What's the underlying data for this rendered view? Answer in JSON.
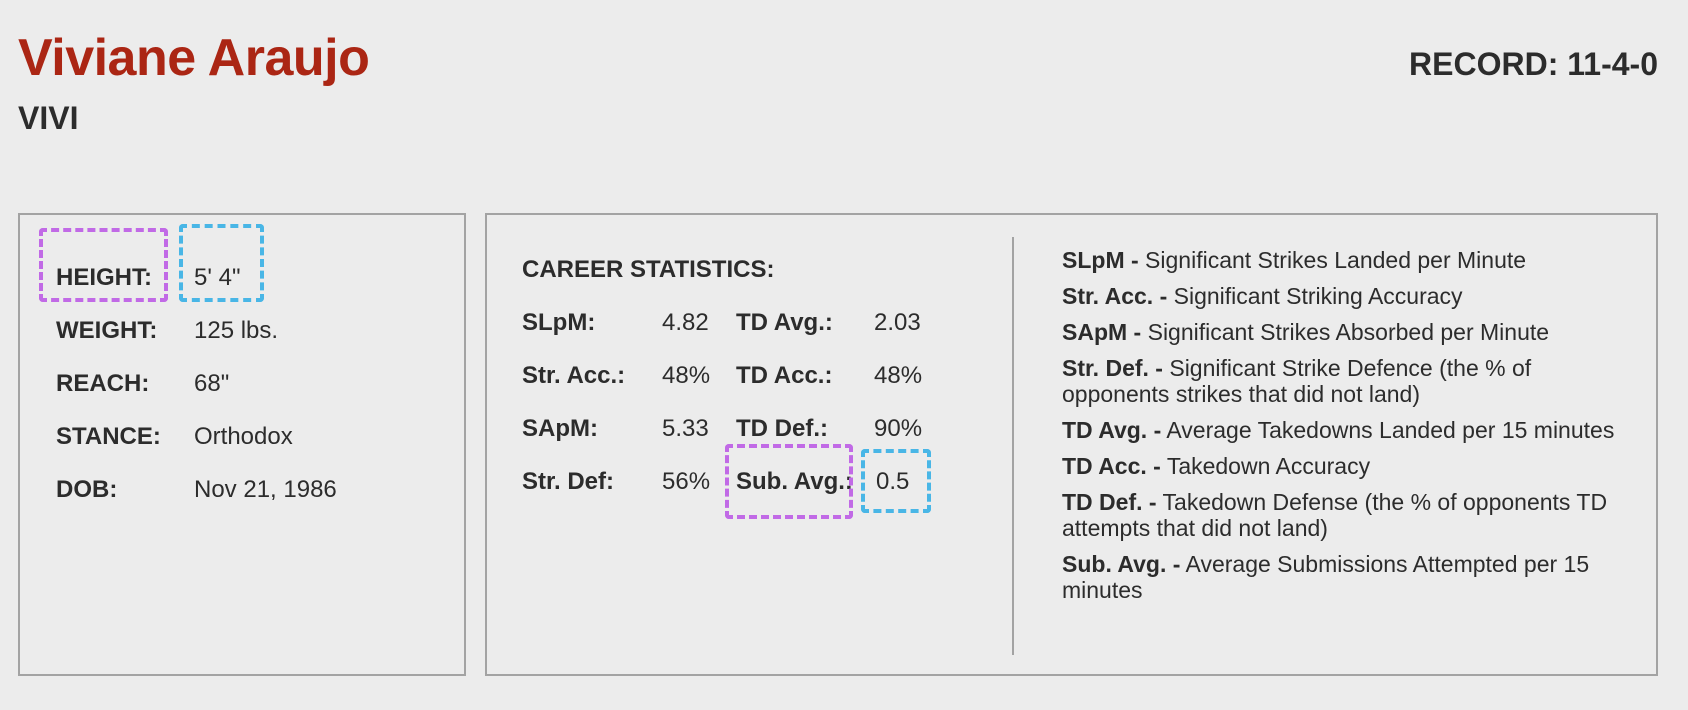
{
  "fighter": {
    "name": "Viviane Araujo",
    "nickname": "VIVI",
    "record": "RECORD: 11-4-0"
  },
  "bio": {
    "rows": [
      {
        "label": "HEIGHT:",
        "value": "5' 4\""
      },
      {
        "label": "WEIGHT:",
        "value": "125 lbs."
      },
      {
        "label": "REACH:",
        "value": "68\""
      },
      {
        "label": "STANCE:",
        "value": "Orthodox"
      },
      {
        "label": "DOB:",
        "value": "Nov 21, 1986"
      }
    ]
  },
  "career": {
    "title": "CAREER STATISTICS:",
    "left": [
      {
        "label": "SLpM:",
        "value": "4.82"
      },
      {
        "label": "Str. Acc.:",
        "value": "48%"
      },
      {
        "label": "SApM:",
        "value": "5.33"
      },
      {
        "label": "Str. Def:",
        "value": "56%"
      }
    ],
    "right": [
      {
        "label": "TD Avg.:",
        "value": "2.03"
      },
      {
        "label": "TD Acc.:",
        "value": "48%"
      },
      {
        "label": "TD Def.:",
        "value": "90%"
      },
      {
        "label": "Sub. Avg.:",
        "value": "0.5"
      }
    ]
  },
  "glossary": [
    {
      "term": "SLpM -",
      "desc": "Significant Strikes Landed per Minute"
    },
    {
      "term": "Str. Acc. -",
      "desc": "Significant Striking Accuracy"
    },
    {
      "term": "SApM -",
      "desc": "Significant Strikes Absorbed per Minute"
    },
    {
      "term": "Str. Def. -",
      "desc": "Significant Strike Defence (the % of opponents strikes that did not land)"
    },
    {
      "term": "TD Avg. -",
      "desc": "Average Takedowns Landed per 15 minutes"
    },
    {
      "term": "TD Acc. -",
      "desc": "Takedown Accuracy"
    },
    {
      "term": "TD Def. -",
      "desc": "Takedown Defense (the % of opponents TD attempts that did not land)"
    },
    {
      "term": "Sub. Avg. -",
      "desc": "Average Submissions Attempted per 15 minutes"
    }
  ],
  "colors": {
    "name": "#ab2614",
    "text": "#2c2c2c",
    "border": "#a3a3a3",
    "highlight_purple": "#c16ae6",
    "highlight_blue": "#49b6e6"
  }
}
